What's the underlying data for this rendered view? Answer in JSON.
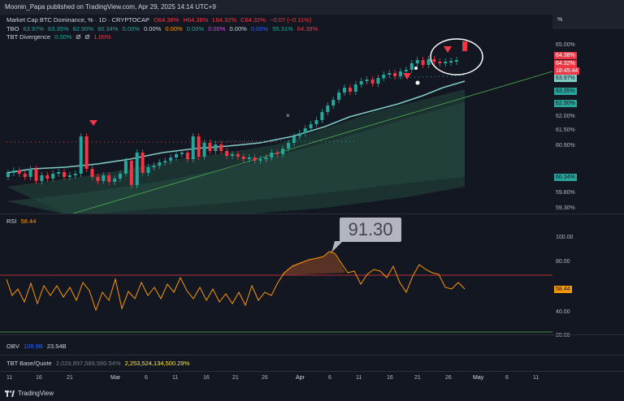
{
  "header": {
    "title": "Moonin_Papa published on TradingView.com, Apr 29, 2025 14:14 UTC+9"
  },
  "main": {
    "legend_line1": {
      "symbol": "Market Cap BTC Dominance, % · 1D · CRYPTOCAP",
      "o": "O64.38%",
      "h": "H64.38%",
      "l": "L64.32%",
      "c": "C64.32%",
      "chg": "−0.07 (−0.11%)"
    },
    "legend_line2": {
      "name": "TBO",
      "vals": [
        "63.97%",
        "63.35%",
        "62.90%",
        "60.34%",
        "0.00%",
        "0.00%",
        "0.00%",
        "0.00%",
        "0.00%",
        "0.00%",
        "0.00%",
        "55.31%",
        "64.38%"
      ]
    },
    "legend_line3": {
      "name": "TBT Divergence",
      "vals": [
        "0.00%",
        "Ø",
        "Ø",
        "1.00%"
      ]
    },
    "y_ticks": [
      "65.00%",
      "63.97%",
      "63.35%",
      "62.90%",
      "62.00%",
      "61.50%",
      "60.90%",
      "60.34%",
      "59.80%",
      "59.30%"
    ],
    "price_tags": {
      "t1": "64.38%",
      "t2": "64.32%",
      "t3": "18:45:44",
      "t4": "63.97%",
      "t5": "63.35%",
      "t6": "62.90%",
      "t7": "60.34%"
    },
    "axis_unit": "%"
  },
  "rsi": {
    "label": "RSI",
    "value": "58.44",
    "y_ticks": [
      "100.00",
      "80.00",
      "40.00",
      "20.00"
    ],
    "callout": "91.30",
    "value_tag": "58.44"
  },
  "obv": {
    "label": "OBV",
    "v1": "108.9B",
    "v2": "23.54B"
  },
  "tbt": {
    "label": "TBT Base/Quote",
    "v1": "2,029,897,589,990.54%",
    "v2": "2,253,524,134,500.29%"
  },
  "x_ticks": [
    "11",
    "16",
    "21",
    "Mar",
    "6",
    "11",
    "16",
    "21",
    "26",
    "Apr",
    "6",
    "11",
    "16",
    "21",
    "26",
    "May",
    "6",
    "11"
  ],
  "footer": {
    "brand": "TradingView"
  },
  "colors": {
    "bg": "#131722",
    "up": "#26a69a",
    "down": "#f23645",
    "rsi": "#ff9800",
    "ema": "#80cbc4",
    "trend": "#4caf50"
  }
}
